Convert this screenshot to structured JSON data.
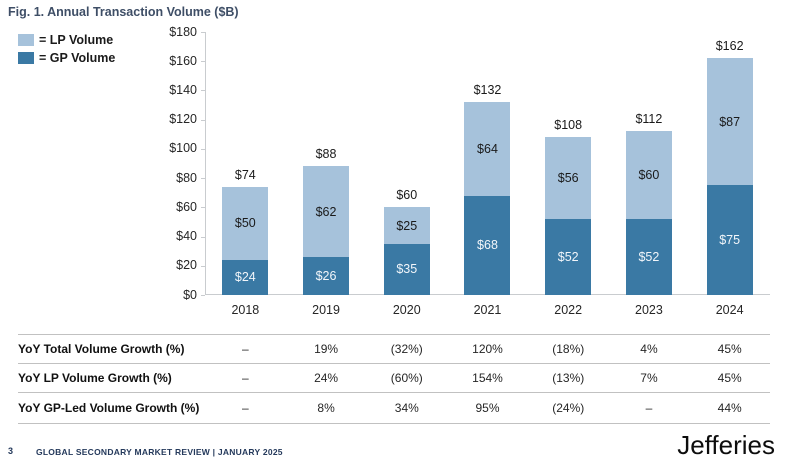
{
  "title": "Fig. 1. Annual Transaction Volume ($B)",
  "legend": [
    {
      "icon": "lp-volume-swatch-icon",
      "label": "= LP Volume",
      "color": "#a6c2db"
    },
    {
      "icon": "gp-volume-swatch-icon",
      "label": "= GP Volume",
      "color": "#3a79a4"
    }
  ],
  "chart_data": {
    "type": "bar",
    "stacked": true,
    "title": "Fig. 1. Annual Transaction Volume ($B)",
    "categories": [
      "2018",
      "2019",
      "2020",
      "2021",
      "2022",
      "2023",
      "2024"
    ],
    "series": [
      {
        "name": "GP Volume",
        "color": "#3a79a4",
        "label_color": "#f2f6fa",
        "values": [
          24,
          26,
          35,
          68,
          52,
          52,
          75
        ]
      },
      {
        "name": "LP Volume",
        "color": "#a6c2db",
        "label_color": "#1a1a1a",
        "values": [
          50,
          62,
          25,
          64,
          56,
          60,
          87
        ]
      }
    ],
    "totals": [
      74,
      88,
      60,
      132,
      108,
      112,
      162
    ],
    "value_prefix": "$",
    "ylim": [
      0,
      180
    ],
    "yticks": [
      0,
      20,
      40,
      60,
      80,
      100,
      120,
      140,
      160,
      180
    ],
    "grid": false,
    "legend_position": "top-left"
  },
  "table": {
    "rows": [
      {
        "label": "YoY Total Volume Growth (%)",
        "values": [
          "–",
          "19%",
          "(32%)",
          "120%",
          "(18%)",
          "4%",
          "45%"
        ]
      },
      {
        "label": "YoY LP Volume Growth (%)",
        "values": [
          "–",
          "24%",
          "(60%)",
          "154%",
          "(13%)",
          "7%",
          "45%"
        ]
      },
      {
        "label": "YoY GP-Led Volume Growth (%)",
        "values": [
          "–",
          "8%",
          "34%",
          "95%",
          "(24%)",
          "–",
          "44%"
        ]
      }
    ]
  },
  "footer": {
    "page_number": "3",
    "text": "GLOBAL SECONDARY MARKET REVIEW | JANUARY 2025",
    "brand": "Jefferies"
  }
}
